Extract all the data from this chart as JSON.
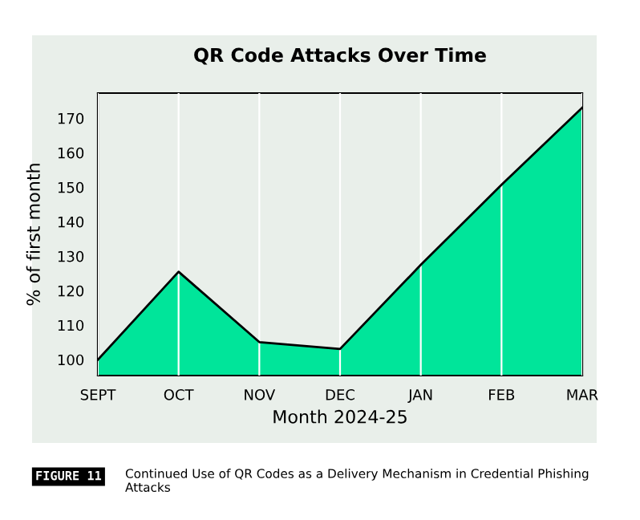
{
  "chart_data": {
    "type": "area",
    "title": "QR Code Attacks Over Time",
    "xlabel": "Month 2024-25",
    "ylabel": "% of first month",
    "categories": [
      "SEPT",
      "OCT",
      "NOV",
      "DEC",
      "JAN",
      "FEB",
      "MAR"
    ],
    "series": [
      {
        "color": "#00e59a",
        "values": [
          100,
          125.5,
          105.1,
          103.1,
          127.5,
          150.7,
          173.1
        ]
      }
    ],
    "ylim": [
      95.4,
      177.3
    ],
    "yticks": [
      100,
      110,
      120,
      130,
      140,
      150,
      160,
      170
    ],
    "grid": "x",
    "annotations": [
      "FIGURE 11",
      "Continued Use of QR Codes as a Delivery Mechanism in Credential Phishing Attacks"
    ]
  }
}
